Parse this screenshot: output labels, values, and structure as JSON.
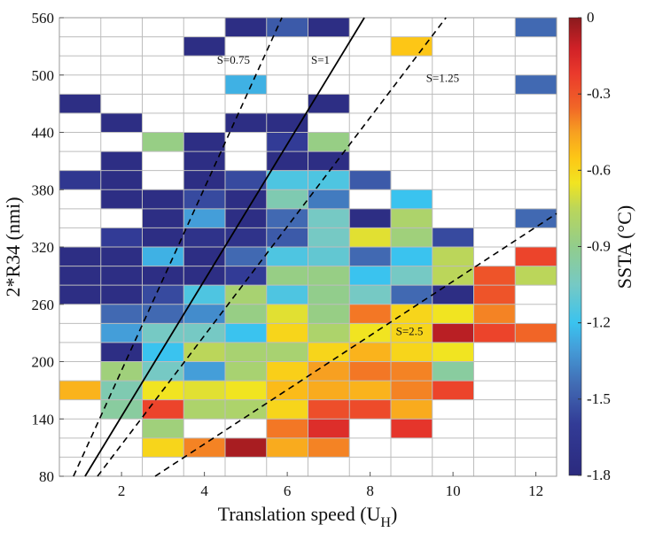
{
  "chart_data": {
    "type": "heatmap",
    "title": "",
    "xlabel": "Translation speed (U",
    "xlabel_subscript": "H",
    "xlabel_suffix": ")",
    "ylabel": "2*R34 (nmi)",
    "xlim": [
      0.5,
      12.5
    ],
    "ylim": [
      80,
      560
    ],
    "x_ticks": [
      2,
      4,
      6,
      8,
      10,
      12
    ],
    "y_ticks": [
      80,
      140,
      200,
      260,
      320,
      380,
      440,
      500,
      560
    ],
    "x_bin_centers": [
      1,
      2,
      3,
      4,
      5,
      6,
      7,
      8,
      9,
      10,
      11,
      12
    ],
    "x_bin_width": 1,
    "y_bin_centers": [
      550,
      530,
      510,
      490,
      470,
      450,
      430,
      410,
      390,
      370,
      350,
      330,
      310,
      290,
      270,
      250,
      230,
      210,
      190,
      170,
      150,
      130,
      110,
      90
    ],
    "y_bin_height": 20,
    "grid": true,
    "values": [
      [
        null,
        null,
        null,
        null,
        -1.75,
        -1.5,
        -1.75,
        null,
        null,
        null,
        null,
        -1.45
      ],
      [
        null,
        null,
        null,
        -1.75,
        null,
        null,
        null,
        null,
        -0.55,
        null,
        null,
        null
      ],
      [
        null,
        null,
        null,
        null,
        null,
        null,
        null,
        null,
        null,
        null,
        null,
        null
      ],
      [
        null,
        null,
        null,
        null,
        -1.25,
        null,
        null,
        null,
        null,
        null,
        null,
        -1.45
      ],
      [
        -1.75,
        null,
        null,
        null,
        null,
        null,
        -1.75,
        null,
        null,
        null,
        null,
        null
      ],
      [
        null,
        -1.75,
        null,
        null,
        -1.75,
        -1.75,
        null,
        null,
        null,
        null,
        null,
        null
      ],
      [
        null,
        null,
        -0.88,
        -1.75,
        null,
        -1.6,
        -0.88,
        null,
        null,
        null,
        null,
        null
      ],
      [
        null,
        -1.75,
        null,
        -1.75,
        null,
        -1.75,
        -1.75,
        null,
        null,
        null,
        null,
        null
      ],
      [
        -1.65,
        -1.75,
        null,
        -1.75,
        -1.55,
        -1.15,
        -1.15,
        -1.5,
        null,
        null,
        null,
        null
      ],
      [
        null,
        -1.75,
        -1.75,
        -1.55,
        -1.75,
        -1.0,
        -1.4,
        null,
        -1.2,
        null,
        null,
        null
      ],
      [
        null,
        null,
        -1.75,
        -1.3,
        -1.75,
        -1.45,
        -1.05,
        -1.75,
        -0.8,
        null,
        null,
        -1.45
      ],
      [
        null,
        -1.6,
        -1.75,
        -1.7,
        -1.7,
        -1.5,
        -1.05,
        -0.68,
        -0.85,
        -1.55,
        null,
        null
      ],
      [
        -1.75,
        -1.75,
        -1.25,
        -1.75,
        -1.45,
        -1.15,
        -1.1,
        -1.45,
        -1.2,
        -0.75,
        null,
        -0.25
      ],
      [
        -1.75,
        -1.75,
        -1.75,
        -1.75,
        -1.6,
        -0.88,
        -0.88,
        -1.2,
        -1.05,
        -0.75,
        -0.3,
        -0.75
      ],
      [
        -1.75,
        -1.75,
        -1.55,
        -1.15,
        -0.82,
        -1.15,
        -0.9,
        -1.05,
        -1.45,
        -1.75,
        -0.3,
        null
      ],
      [
        null,
        -1.45,
        -1.45,
        -1.35,
        -0.88,
        -0.68,
        -0.88,
        -0.38,
        -0.6,
        -0.65,
        -0.4,
        null
      ],
      [
        null,
        -1.3,
        -1.05,
        -1.05,
        -1.2,
        -0.6,
        -0.8,
        -0.65,
        -0.6,
        -0.08,
        -0.25,
        -0.35
      ],
      [
        null,
        -1.75,
        -1.2,
        -0.75,
        -0.82,
        -0.82,
        -0.6,
        -0.5,
        -0.6,
        -0.65,
        null,
        null
      ],
      [
        null,
        -0.85,
        -1.05,
        -1.3,
        -0.82,
        -0.58,
        -0.45,
        -0.38,
        -0.4,
        -0.95,
        null,
        null
      ],
      [
        -0.5,
        -1.0,
        -0.65,
        -0.68,
        -0.65,
        -0.52,
        -0.48,
        -0.5,
        -0.4,
        -0.25,
        null,
        null
      ],
      [
        null,
        -0.95,
        -0.25,
        -0.8,
        -0.8,
        -0.6,
        -0.28,
        -0.27,
        -0.48,
        null,
        null,
        null
      ],
      [
        null,
        null,
        -0.85,
        null,
        null,
        -0.38,
        -0.17,
        null,
        -0.2,
        null,
        null,
        null
      ],
      [
        null,
        null,
        -0.6,
        -0.4,
        -0.05,
        -0.48,
        -0.4,
        null,
        null,
        null,
        null,
        null
      ],
      [
        null,
        null,
        null,
        null,
        null,
        null,
        null,
        null,
        null,
        null,
        null,
        null
      ]
    ],
    "lines": [
      {
        "name": "S=0.75",
        "style": "dashed",
        "x": [
          0.84,
          5.87
        ],
        "y": [
          80,
          560
        ],
        "label_x": 4.7,
        "label_y": 512
      },
      {
        "name": "S=1",
        "style": "solid",
        "x": [
          1.12,
          7.86
        ],
        "y": [
          80,
          560
        ],
        "label_x": 6.8,
        "label_y": 512
      },
      {
        "name": "S=1.25",
        "style": "dashed",
        "x": [
          1.42,
          9.83
        ],
        "y": [
          80,
          560
        ],
        "label_x": 9.75,
        "label_y": 493
      },
      {
        "name": "S=2.5",
        "style": "dashed",
        "x": [
          2.81,
          12.5
        ],
        "y": [
          80,
          355
        ],
        "label_x": 8.95,
        "label_y": 228
      }
    ],
    "colorbar": {
      "label": "SSTA (°C)",
      "range": [
        -1.8,
        0
      ],
      "ticks": [
        0,
        -0.3,
        -0.6,
        -0.9,
        -1.2,
        -1.5,
        -1.8
      ],
      "tick_labels": [
        "0",
        "-0.3",
        "-0.6",
        "-0.9",
        "-1.2",
        "-1.5",
        "-1.8"
      ],
      "stops": [
        {
          "v": -1.8,
          "color": "#2b2a7e"
        },
        {
          "v": -1.6,
          "color": "#323b96"
        },
        {
          "v": -1.45,
          "color": "#4169b2"
        },
        {
          "v": -1.3,
          "color": "#449ed9"
        },
        {
          "v": -1.2,
          "color": "#3ac3ef"
        },
        {
          "v": -1.05,
          "color": "#76c9c4"
        },
        {
          "v": -0.9,
          "color": "#92cd8c"
        },
        {
          "v": -0.75,
          "color": "#bbd65a"
        },
        {
          "v": -0.65,
          "color": "#f1e421"
        },
        {
          "v": -0.55,
          "color": "#fdc616"
        },
        {
          "v": -0.45,
          "color": "#f7a021"
        },
        {
          "v": -0.35,
          "color": "#f16527"
        },
        {
          "v": -0.22,
          "color": "#ea3a2c"
        },
        {
          "v": -0.12,
          "color": "#d02127"
        },
        {
          "v": 0.0,
          "color": "#8b1a1d"
        }
      ]
    }
  }
}
